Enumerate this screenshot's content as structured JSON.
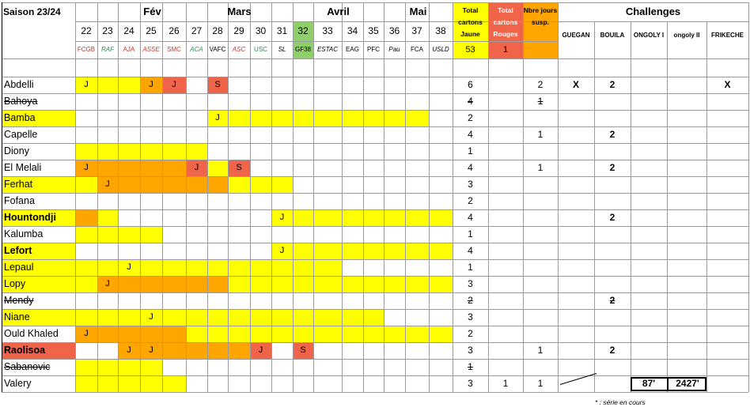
{
  "title": "Saison 23/24",
  "months": [
    "Fév",
    "Mars",
    "Avril",
    "Mai"
  ],
  "matchdays": [
    "22",
    "23",
    "24",
    "25",
    "26",
    "27",
    "28",
    "29",
    "30",
    "31",
    "32",
    "33",
    "34",
    "35",
    "36",
    "37",
    "38"
  ],
  "opponents": [
    {
      "label": "FCGB",
      "color": "#c0392b",
      "italic": false
    },
    {
      "label": "RAF",
      "color": "#2e8b57",
      "italic": true
    },
    {
      "label": "AJA",
      "color": "#c0392b",
      "italic": false
    },
    {
      "label": "ASSE",
      "color": "#c0392b",
      "italic": true
    },
    {
      "label": "SMC",
      "color": "#c0392b",
      "italic": false
    },
    {
      "label": "ACA",
      "color": "#2e8b57",
      "italic": true
    },
    {
      "label": "VAFC",
      "color": "#000000",
      "italic": false
    },
    {
      "label": "ASC",
      "color": "#c0392b",
      "italic": true
    },
    {
      "label": "USC",
      "color": "#2e8b57",
      "italic": false
    },
    {
      "label": "SL",
      "color": "#000000",
      "italic": true
    },
    {
      "label": "GF38",
      "color": "#000000",
      "italic": false
    },
    {
      "label": "ESTAC",
      "color": "#000000",
      "italic": true
    },
    {
      "label": "EAG",
      "color": "#000000",
      "italic": false
    },
    {
      "label": "PFC",
      "color": "#000000",
      "italic": false
    },
    {
      "label": "Pau",
      "color": "#000000",
      "italic": true
    },
    {
      "label": "FCA",
      "color": "#000000",
      "italic": false
    },
    {
      "label": "USLD",
      "color": "#000000",
      "italic": true
    }
  ],
  "totals_headers": {
    "yellow": "Total cartons Jaune",
    "red": "Total cartons Rouges",
    "susp": "Nbre jours susp."
  },
  "totals_values": {
    "yellow": "53",
    "red": "1"
  },
  "challenges_title": "Challenges",
  "challenge_names": [
    "GUEGAN",
    "BOUILA",
    "ONGOLY I",
    "ongoly II",
    "FRIKECHE"
  ],
  "colors": {
    "yellow": "#ffff00",
    "orange": "#ffa500",
    "red": "#f0644a",
    "green": "#8fcf6a",
    "border": "#9a9a9a"
  },
  "players": [
    {
      "name": "Abdelli",
      "style": "normal",
      "name_fill": "none",
      "cells": [
        "Y",
        "Y",
        "Y",
        "O",
        "R",
        "",
        "R",
        "",
        "",
        "",
        "",
        "",
        "",
        "",
        "",
        "",
        ""
      ],
      "marks": [
        "J",
        "",
        "",
        "J",
        "J",
        "",
        "S",
        "",
        "",
        "",
        "",
        "",
        "",
        "",
        "",
        "",
        ""
      ],
      "yellow": "6",
      "red": "",
      "susp": "2",
      "challenges": [
        "X",
        "2",
        "",
        "",
        "X"
      ]
    },
    {
      "name": "Bahoya",
      "style": "strike",
      "name_fill": "none",
      "cells": [
        "",
        "",
        "",
        "",
        "",
        "",
        "",
        "",
        "",
        "",
        "",
        "",
        "",
        "",
        "",
        "",
        ""
      ],
      "marks": [
        "",
        "",
        "",
        "",
        "",
        "",
        "",
        "",
        "",
        "",
        "",
        "",
        "",
        "",
        "",
        "",
        ""
      ],
      "yellow": "4",
      "red": "",
      "susp": "1",
      "challenges": [
        "",
        "",
        "",
        "",
        ""
      ]
    },
    {
      "name": "Bamba",
      "style": "normal",
      "name_fill": "yellow",
      "cells": [
        "",
        "",
        "",
        "",
        "",
        "",
        "Y",
        "Y",
        "Y",
        "Y",
        "Y",
        "Y",
        "Y",
        "Y",
        "Y",
        "Y",
        ""
      ],
      "marks": [
        "",
        "",
        "",
        "",
        "",
        "",
        "J",
        "",
        "",
        "",
        "",
        "",
        "",
        "",
        "",
        "",
        ""
      ],
      "yellow": "2",
      "red": "",
      "susp": "",
      "challenges": [
        "",
        "",
        "",
        "",
        ""
      ]
    },
    {
      "name": "Capelle",
      "style": "normal",
      "name_fill": "none",
      "cells": [
        "",
        "",
        "",
        "",
        "",
        "",
        "",
        "",
        "",
        "",
        "",
        "",
        "",
        "",
        "",
        "",
        ""
      ],
      "marks": [
        "",
        "",
        "",
        "",
        "",
        "",
        "",
        "",
        "",
        "",
        "",
        "",
        "",
        "",
        "",
        "",
        ""
      ],
      "yellow": "4",
      "red": "",
      "susp": "1",
      "challenges": [
        "",
        "2",
        "",
        "",
        ""
      ]
    },
    {
      "name": "Diony",
      "style": "normal",
      "name_fill": "none",
      "cells": [
        "Y",
        "Y",
        "Y",
        "Y",
        "Y",
        "Y",
        "",
        "",
        "",
        "",
        "",
        "",
        "",
        "",
        "",
        "",
        ""
      ],
      "marks": [
        "",
        "",
        "",
        "",
        "",
        "",
        "",
        "",
        "",
        "",
        "",
        "",
        "",
        "",
        "",
        "",
        ""
      ],
      "yellow": "1",
      "red": "",
      "susp": "",
      "challenges": [
        "",
        "",
        "",
        "",
        ""
      ]
    },
    {
      "name": "El Melali",
      "style": "normal",
      "name_fill": "none",
      "cells": [
        "O",
        "O",
        "O",
        "O",
        "O",
        "R",
        "Y",
        "R",
        "",
        "",
        "",
        "",
        "",
        "",
        "",
        "",
        ""
      ],
      "marks": [
        "J",
        "",
        "",
        "",
        "",
        "J",
        "",
        "S",
        "",
        "",
        "",
        "",
        "",
        "",
        "",
        "",
        ""
      ],
      "yellow": "4",
      "red": "",
      "susp": "1",
      "challenges": [
        "",
        "2",
        "",
        "",
        ""
      ]
    },
    {
      "name": "Ferhat",
      "style": "normal",
      "name_fill": "yellow",
      "cells": [
        "Y",
        "O",
        "O",
        "O",
        "O",
        "O",
        "O",
        "Y",
        "Y",
        "Y",
        "",
        "",
        "",
        "",
        "",
        "",
        ""
      ],
      "marks": [
        "",
        "J",
        "",
        "",
        "",
        "",
        "",
        "",
        "",
        "",
        "",
        "",
        "",
        "",
        "",
        "",
        ""
      ],
      "yellow": "3",
      "red": "",
      "susp": "",
      "challenges": [
        "",
        "",
        "",
        "",
        ""
      ]
    },
    {
      "name": "Fofana",
      "style": "normal",
      "name_fill": "none",
      "cells": [
        "",
        "",
        "",
        "",
        "",
        "",
        "",
        "",
        "",
        "",
        "",
        "",
        "",
        "",
        "",
        "",
        ""
      ],
      "marks": [
        "",
        "",
        "",
        "",
        "",
        "",
        "",
        "",
        "",
        "",
        "",
        "",
        "",
        "",
        "",
        "",
        ""
      ],
      "yellow": "2",
      "red": "",
      "susp": "",
      "challenges": [
        "",
        "",
        "",
        "",
        ""
      ]
    },
    {
      "name": "Hountondji",
      "style": "bold",
      "name_fill": "yellow",
      "cells": [
        "O",
        "Y",
        "",
        "",
        "",
        "",
        "",
        "",
        "",
        "Y",
        "Y",
        "Y",
        "Y",
        "Y",
        "Y",
        "Y",
        "Y"
      ],
      "marks": [
        "",
        "",
        "",
        "",
        "",
        "",
        "",
        "",
        "",
        "J",
        "",
        "",
        "",
        "",
        "",
        "",
        ""
      ],
      "yellow": "4",
      "red": "",
      "susp": "",
      "challenges": [
        "",
        "2",
        "",
        "",
        ""
      ]
    },
    {
      "name": "Kalumba",
      "style": "normal",
      "name_fill": "none",
      "cells": [
        "Y",
        "Y",
        "Y",
        "Y",
        "",
        "",
        "",
        "",
        "",
        "",
        "",
        "",
        "",
        "",
        "",
        "",
        ""
      ],
      "marks": [
        "",
        "",
        "",
        "",
        "",
        "",
        "",
        "",
        "",
        "",
        "",
        "",
        "",
        "",
        "",
        "",
        ""
      ],
      "yellow": "1",
      "red": "",
      "susp": "",
      "challenges": [
        "",
        "",
        "",
        "",
        ""
      ]
    },
    {
      "name": "Lefort",
      "style": "bold",
      "name_fill": "yellow",
      "cells": [
        "",
        "",
        "",
        "",
        "",
        "",
        "",
        "",
        "",
        "Y",
        "Y",
        "Y",
        "Y",
        "Y",
        "Y",
        "Y",
        "Y"
      ],
      "marks": [
        "",
        "",
        "",
        "",
        "",
        "",
        "",
        "",
        "",
        "J",
        "",
        "",
        "",
        "",
        "",
        "",
        ""
      ],
      "yellow": "4",
      "red": "",
      "susp": "",
      "challenges": [
        "",
        "",
        "",
        "",
        ""
      ]
    },
    {
      "name": "Lepaul",
      "style": "normal",
      "name_fill": "yellow",
      "cells": [
        "Y",
        "Y",
        "Y",
        "Y",
        "Y",
        "Y",
        "Y",
        "Y",
        "Y",
        "Y",
        "Y",
        "Y",
        "",
        "",
        "",
        "",
        ""
      ],
      "marks": [
        "",
        "",
        "J",
        "",
        "",
        "",
        "",
        "",
        "",
        "",
        "",
        "",
        "",
        "",
        "",
        "",
        ""
      ],
      "yellow": "1",
      "red": "",
      "susp": "",
      "challenges": [
        "",
        "",
        "",
        "",
        ""
      ]
    },
    {
      "name": "Lopy",
      "style": "normal",
      "name_fill": "yellow",
      "cells": [
        "Y",
        "O",
        "O",
        "O",
        "O",
        "O",
        "O",
        "Y",
        "Y",
        "Y",
        "Y",
        "Y",
        "Y",
        "Y",
        "Y",
        "Y",
        "Y"
      ],
      "marks": [
        "",
        "J",
        "",
        "",
        "",
        "",
        "",
        "",
        "",
        "",
        "",
        "",
        "",
        "",
        "",
        "",
        ""
      ],
      "yellow": "3",
      "red": "",
      "susp": "",
      "challenges": [
        "",
        "",
        "",
        "",
        ""
      ]
    },
    {
      "name": "Mendy",
      "style": "strike",
      "name_fill": "none",
      "cells": [
        "",
        "",
        "",
        "",
        "",
        "",
        "",
        "",
        "",
        "",
        "",
        "",
        "",
        "",
        "",
        "",
        ""
      ],
      "marks": [
        "",
        "",
        "",
        "",
        "",
        "",
        "",
        "",
        "",
        "",
        "",
        "",
        "",
        "",
        "",
        "",
        ""
      ],
      "yellow": "2",
      "red": "",
      "susp": "",
      "challenges": [
        "",
        "2",
        "",
        "",
        ""
      ],
      "strike_chal": true
    },
    {
      "name": "Niane",
      "style": "normal",
      "name_fill": "yellow",
      "cells": [
        "Y",
        "Y",
        "Y",
        "Y",
        "Y",
        "Y",
        "Y",
        "Y",
        "Y",
        "Y",
        "Y",
        "Y",
        "Y",
        "Y",
        "",
        "",
        ""
      ],
      "marks": [
        "",
        "",
        "",
        "J",
        "",
        "",
        "",
        "",
        "",
        "",
        "",
        "",
        "",
        "",
        "",
        "",
        ""
      ],
      "yellow": "3",
      "red": "",
      "susp": "",
      "challenges": [
        "",
        "",
        "",
        "",
        ""
      ]
    },
    {
      "name": "Ould Khaled",
      "style": "normal",
      "name_fill": "none",
      "cells": [
        "O",
        "O",
        "O",
        "O",
        "O",
        "Y",
        "Y",
        "Y",
        "Y",
        "Y",
        "Y",
        "Y",
        "Y",
        "Y",
        "Y",
        "Y",
        "Y"
      ],
      "marks": [
        "J",
        "",
        "",
        "",
        "",
        "",
        "",
        "",
        "",
        "",
        "",
        "",
        "",
        "",
        "",
        "",
        ""
      ],
      "yellow": "2",
      "red": "",
      "susp": "",
      "challenges": [
        "",
        "",
        "",
        "",
        ""
      ]
    },
    {
      "name": "Raolisoa",
      "style": "bold",
      "name_fill": "red",
      "cells": [
        "",
        "",
        "O",
        "O",
        "O",
        "O",
        "O",
        "O",
        "R",
        "",
        "R",
        "",
        "",
        "",
        "",
        "",
        ""
      ],
      "marks": [
        "",
        "",
        "J",
        "J",
        "",
        "",
        "",
        "",
        "J",
        "",
        "S",
        "",
        "",
        "",
        "",
        "",
        ""
      ],
      "yellow": "3",
      "red": "",
      "susp": "1",
      "challenges": [
        "",
        "2",
        "",
        "",
        ""
      ]
    },
    {
      "name": "Sabanovic",
      "style": "strike",
      "name_fill": "none",
      "cells": [
        "Y",
        "Y",
        "Y",
        "Y",
        "",
        "",
        "",
        "",
        "",
        "",
        "",
        "",
        "",
        "",
        "",
        "",
        ""
      ],
      "marks": [
        "",
        "",
        "",
        "",
        "",
        "",
        "",
        "",
        "",
        "",
        "",
        "",
        "",
        "",
        "",
        "",
        ""
      ],
      "yellow": "1",
      "red": "",
      "susp": "",
      "challenges": [
        "",
        "",
        "",
        "",
        ""
      ]
    },
    {
      "name": "Valery",
      "style": "normal",
      "name_fill": "none",
      "cells": [
        "Y",
        "Y",
        "Y",
        "Y",
        "Y",
        "",
        "",
        "",
        "",
        "",
        "",
        "",
        "",
        "",
        "",
        "",
        ""
      ],
      "marks": [
        "",
        "",
        "",
        "",
        "",
        "",
        "",
        "",
        "",
        "",
        "",
        "",
        "",
        "",
        "",
        "",
        ""
      ],
      "yellow": "3",
      "red": "1",
      "susp": "1",
      "challenges": [
        "",
        "",
        "",
        "",
        ""
      ]
    }
  ],
  "records": [
    "87'",
    "2427'"
  ],
  "footnote": "* : série en cours"
}
